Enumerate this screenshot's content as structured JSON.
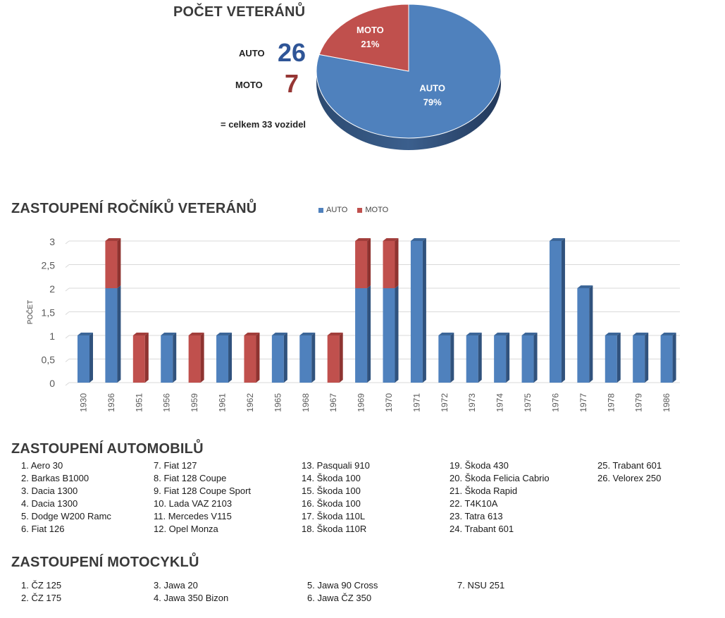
{
  "summary": {
    "title": "POČET VETERÁNŮ",
    "auto_label": "AUTO",
    "auto_count": "26",
    "moto_label": "MOTO",
    "moto_count": "7",
    "total_text": "= celkem 33 vozidel",
    "colors": {
      "auto": "#4f81bd",
      "moto": "#c0504d",
      "auto_text": "#2f5597",
      "moto_text": "#963634"
    }
  },
  "chart_data": [
    {
      "type": "pie",
      "title": "",
      "slices": [
        {
          "label": "AUTO",
          "value": 79,
          "display": "79%"
        },
        {
          "label": "MOTO",
          "value": 21,
          "display": "21%"
        }
      ]
    },
    {
      "type": "bar",
      "stacked": true,
      "title": "ZASTOUPENÍ ROČNÍKŮ VETERÁNŮ",
      "xlabel": "",
      "ylabel": "POČET",
      "ylim": [
        0,
        3
      ],
      "yticks": [
        "0",
        "0,5",
        "1",
        "1,5",
        "2",
        "2,5",
        "3"
      ],
      "grid": true,
      "legend_position": "top",
      "categories": [
        "1930",
        "1936",
        "1951",
        "1956",
        "1959",
        "1961",
        "1962",
        "1965",
        "1968",
        "1967",
        "1969",
        "1970",
        "1971",
        "1972",
        "1973",
        "1974",
        "1975",
        "1976",
        "1977",
        "1978",
        "1979",
        "1986"
      ],
      "series": [
        {
          "name": "AUTO",
          "values": [
            1,
            2,
            0,
            1,
            0,
            1,
            0,
            1,
            1,
            0,
            2,
            2,
            3,
            1,
            1,
            1,
            1,
            3,
            2,
            1,
            1,
            1
          ]
        },
        {
          "name": "MOTO",
          "values": [
            0,
            1,
            1,
            0,
            1,
            0,
            1,
            0,
            0,
            1,
            1,
            1,
            0,
            0,
            0,
            0,
            0,
            0,
            0,
            0,
            0,
            0
          ]
        }
      ]
    }
  ],
  "cars": {
    "title": "ZASTOUPENÍ AUTOMOBILŮ",
    "columns": [
      [
        "1. Aero 30",
        "2. Barkas B1000",
        "3. Dacia 1300",
        "4. Dacia 1300",
        "5. Dodge W200 Ramc",
        "6. Fiat 126"
      ],
      [
        "7. Fiat 127",
        "8. Fiat 128 Coupe",
        "9. Fiat 128 Coupe Sport",
        "10. Lada VAZ 2103",
        "11. Mercedes V115",
        "12. Opel Monza"
      ],
      [
        "13. Pasquali 910",
        "14. Škoda 100",
        "15. Škoda 100",
        "16. Škoda 100",
        "17. Škoda 110L",
        "18. Škoda 110R"
      ],
      [
        "19. Škoda 430",
        "20. Škoda Felicia Cabrio",
        "21. Škoda Rapid",
        "22. T4K10A",
        "23. Tatra 613",
        "24. Trabant 601"
      ],
      [
        "25. Trabant 601",
        "26. Velorex 250"
      ]
    ]
  },
  "motos": {
    "title": "ZASTOUPENÍ MOTOCYKLŮ",
    "columns": [
      [
        "1. ČZ 125",
        "2. ČZ 175"
      ],
      [
        "3. Jawa 20",
        "4. Jawa 350 Bizon"
      ],
      [
        "5. Jawa 90 Cross",
        "6. Jawa ČZ 350"
      ],
      [
        "7. NSU 251"
      ]
    ]
  }
}
